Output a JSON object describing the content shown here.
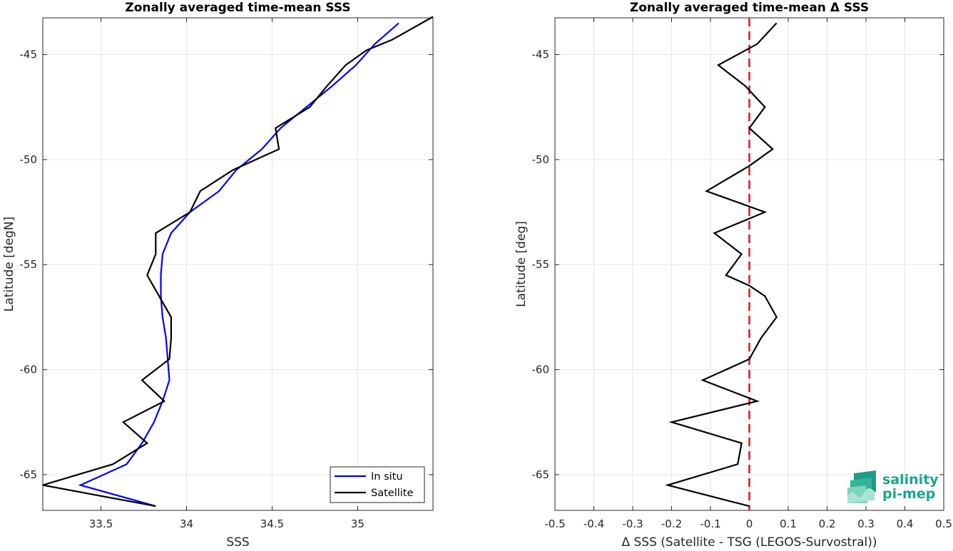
{
  "logo": {
    "line1": "salinity",
    "line2": "pi-mep",
    "color": "#17a88a"
  },
  "chart_data": [
    {
      "type": "line",
      "title": "Zonally averaged time-mean SSS",
      "xlabel": "SSS",
      "ylabel": "Latitude [degN]",
      "xlim": [
        33.16,
        35.44
      ],
      "ylim": [
        -66.7,
        -43.25
      ],
      "xticks": [
        33.5,
        34,
        34.5,
        35
      ],
      "xtick_labels": [
        "33.5",
        "34",
        "34.5",
        "35"
      ],
      "yticks": [
        -45,
        -50,
        -55,
        -60,
        -65
      ],
      "ytick_labels": [
        "-45",
        "-50",
        "-55",
        "-60",
        "-65"
      ],
      "grid": true,
      "legend": "bottom-right",
      "series": [
        {
          "name": "In situ",
          "color": "#0000ff",
          "points": [
            [
              35.24,
              -43.5
            ],
            [
              35.1,
              -44.5
            ],
            [
              34.99,
              -45.5
            ],
            [
              34.85,
              -46.5
            ],
            [
              34.7,
              -47.5
            ],
            [
              34.55,
              -48.5
            ],
            [
              34.44,
              -49.5
            ],
            [
              34.29,
              -50.5
            ],
            [
              34.19,
              -51.5
            ],
            [
              34.02,
              -52.5
            ],
            [
              33.91,
              -53.5
            ],
            [
              33.86,
              -54.5
            ],
            [
              33.85,
              -55.5
            ],
            [
              33.85,
              -56.5
            ],
            [
              33.86,
              -57.5
            ],
            [
              33.88,
              -58.5
            ],
            [
              33.89,
              -59.5
            ],
            [
              33.9,
              -60.5
            ],
            [
              33.86,
              -61.5
            ],
            [
              33.81,
              -62.5
            ],
            [
              33.74,
              -63.5
            ],
            [
              33.65,
              -64.5
            ],
            [
              33.38,
              -65.5
            ],
            [
              33.82,
              -66.5
            ]
          ]
        },
        {
          "name": "Satellite",
          "color": "#000000",
          "points": [
            [
              35.44,
              -43.2
            ],
            [
              35.2,
              -44.3
            ],
            [
              35.05,
              -44.8
            ],
            [
              34.93,
              -45.5
            ],
            [
              34.82,
              -46.5
            ],
            [
              34.72,
              -47.5
            ],
            [
              34.52,
              -48.5
            ],
            [
              34.54,
              -49.5
            ],
            [
              34.27,
              -50.5
            ],
            [
              34.08,
              -51.5
            ],
            [
              34.02,
              -52.5
            ],
            [
              33.82,
              -53.5
            ],
            [
              33.82,
              -54.5
            ],
            [
              33.77,
              -55.5
            ],
            [
              33.84,
              -56.5
            ],
            [
              33.91,
              -57.5
            ],
            [
              33.91,
              -58.5
            ],
            [
              33.9,
              -59.5
            ],
            [
              33.74,
              -60.5
            ],
            [
              33.87,
              -61.5
            ],
            [
              33.63,
              -62.5
            ],
            [
              33.77,
              -63.5
            ],
            [
              33.57,
              -64.5
            ],
            [
              33.16,
              -65.5
            ],
            [
              33.82,
              -66.5
            ]
          ]
        }
      ]
    },
    {
      "type": "line",
      "title": "Zonally averaged time-mean Δ SSS",
      "xlabel": "Δ SSS (Satellite - TSG (LEGOS-Survostral))",
      "ylabel": "Latitude [deg]",
      "xlim": [
        -0.5,
        0.5
      ],
      "ylim": [
        -66.7,
        -43.25
      ],
      "xticks": [
        -0.5,
        -0.4,
        -0.3,
        -0.2,
        -0.1,
        0,
        0.1,
        0.2,
        0.3,
        0.4,
        0.5
      ],
      "xtick_labels": [
        "-0.5",
        "-0.4",
        "-0.3",
        "-0.2",
        "-0.1",
        "0",
        "0.1",
        "0.2",
        "0.3",
        "0.4",
        "0.5"
      ],
      "yticks": [
        -45,
        -50,
        -55,
        -60,
        -65
      ],
      "ytick_labels": [
        "-45",
        "-50",
        "-55",
        "-60",
        "-65"
      ],
      "grid": true,
      "reference_line": {
        "x": 0,
        "color": "#e41a1c",
        "style": "dashed"
      },
      "series": [
        {
          "color": "#000000",
          "points": [
            [
              0.07,
              -43.5
            ],
            [
              0.02,
              -44.5
            ],
            [
              -0.08,
              -45.5
            ],
            [
              -0.01,
              -46.5
            ],
            [
              0.04,
              -47.5
            ],
            [
              0.0,
              -48.5
            ],
            [
              0.06,
              -49.5
            ],
            [
              0.0,
              -50.3
            ],
            [
              -0.11,
              -51.5
            ],
            [
              0.04,
              -52.5
            ],
            [
              -0.09,
              -53.5
            ],
            [
              -0.02,
              -54.5
            ],
            [
              -0.06,
              -55.5
            ],
            [
              0.0,
              -56.0
            ],
            [
              0.04,
              -56.5
            ],
            [
              0.07,
              -57.5
            ],
            [
              0.03,
              -58.5
            ],
            [
              0.0,
              -59.5
            ],
            [
              -0.12,
              -60.5
            ],
            [
              0.02,
              -61.5
            ],
            [
              -0.2,
              -62.5
            ],
            [
              -0.02,
              -63.5
            ],
            [
              -0.03,
              -64.5
            ],
            [
              -0.21,
              -65.5
            ],
            [
              0.0,
              -66.5
            ]
          ]
        }
      ]
    }
  ]
}
